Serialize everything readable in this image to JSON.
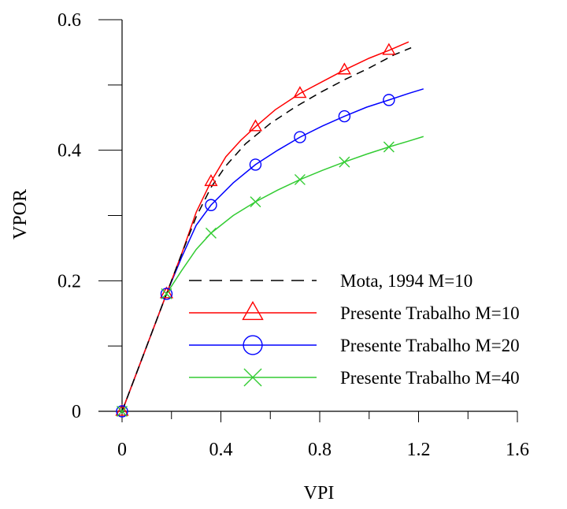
{
  "chart_data": {
    "type": "line",
    "title": "",
    "xlabel": "VPI",
    "ylabel": "VPOR",
    "xlim": [
      0,
      1.6
    ],
    "ylim": [
      0,
      0.6
    ],
    "x_ticks": [
      0,
      0.4,
      0.8,
      1.2,
      1.6
    ],
    "x_tick_labels": [
      "0",
      "0.4",
      "0.8",
      "1.2",
      "1.6"
    ],
    "y_ticks": [
      0,
      0.2,
      0.4,
      0.6
    ],
    "y_tick_labels": [
      "0",
      "0.2",
      "0.4",
      "0.6"
    ],
    "grid": false,
    "legend_position": "bottom-right",
    "series": [
      {
        "name": "Mota, 1994 M=10",
        "color": "#000000",
        "line_style": "dashed",
        "marker": "none",
        "x": [
          0,
          0.06,
          0.12,
          0.18,
          0.24,
          0.3,
          0.36,
          0.42,
          0.5,
          0.6,
          0.7,
          0.8,
          0.9,
          1.0,
          1.1,
          1.17
        ],
        "y": [
          0,
          0.06,
          0.12,
          0.18,
          0.24,
          0.298,
          0.343,
          0.376,
          0.41,
          0.441,
          0.466,
          0.488,
          0.508,
          0.526,
          0.546,
          0.557
        ]
      },
      {
        "name": "Presente Trabalho M=10",
        "color": "#ff0000",
        "line_style": "solid",
        "marker": "triangle",
        "x": [
          0,
          0.06,
          0.12,
          0.18,
          0.24,
          0.3,
          0.36,
          0.42,
          0.48,
          0.54,
          0.62,
          0.72,
          0.82,
          0.9,
          1.0,
          1.08,
          1.16
        ],
        "y": [
          0,
          0.06,
          0.12,
          0.18,
          0.24,
          0.305,
          0.352,
          0.39,
          0.415,
          0.436,
          0.462,
          0.487,
          0.507,
          0.523,
          0.541,
          0.553,
          0.566
        ],
        "marker_x": [
          0,
          0.18,
          0.36,
          0.54,
          0.72,
          0.9,
          1.08
        ],
        "marker_y": [
          0,
          0.18,
          0.352,
          0.436,
          0.487,
          0.523,
          0.553
        ]
      },
      {
        "name": "Presente Trabalho M=20",
        "color": "#0000ff",
        "line_style": "solid",
        "marker": "circle",
        "x": [
          0,
          0.06,
          0.12,
          0.18,
          0.24,
          0.3,
          0.36,
          0.45,
          0.54,
          0.63,
          0.72,
          0.81,
          0.9,
          0.99,
          1.08,
          1.16,
          1.22
        ],
        "y": [
          0,
          0.06,
          0.12,
          0.18,
          0.235,
          0.285,
          0.316,
          0.35,
          0.378,
          0.4,
          0.42,
          0.437,
          0.452,
          0.466,
          0.477,
          0.487,
          0.494
        ],
        "marker_x": [
          0,
          0.18,
          0.36,
          0.54,
          0.72,
          0.9,
          1.08
        ],
        "marker_y": [
          0,
          0.18,
          0.316,
          0.378,
          0.42,
          0.452,
          0.477
        ]
      },
      {
        "name": "Presente Trabalho M=40",
        "color": "#33cc33",
        "line_style": "solid",
        "marker": "x",
        "x": [
          0,
          0.06,
          0.12,
          0.18,
          0.24,
          0.3,
          0.36,
          0.45,
          0.54,
          0.63,
          0.72,
          0.81,
          0.9,
          0.99,
          1.08,
          1.16,
          1.22
        ],
        "y": [
          0,
          0.06,
          0.12,
          0.18,
          0.215,
          0.248,
          0.273,
          0.3,
          0.321,
          0.339,
          0.355,
          0.369,
          0.382,
          0.394,
          0.405,
          0.414,
          0.421
        ],
        "marker_x": [
          0,
          0.18,
          0.36,
          0.54,
          0.72,
          0.9,
          1.08
        ],
        "marker_y": [
          0,
          0.18,
          0.273,
          0.321,
          0.355,
          0.382,
          0.405
        ]
      }
    ]
  }
}
